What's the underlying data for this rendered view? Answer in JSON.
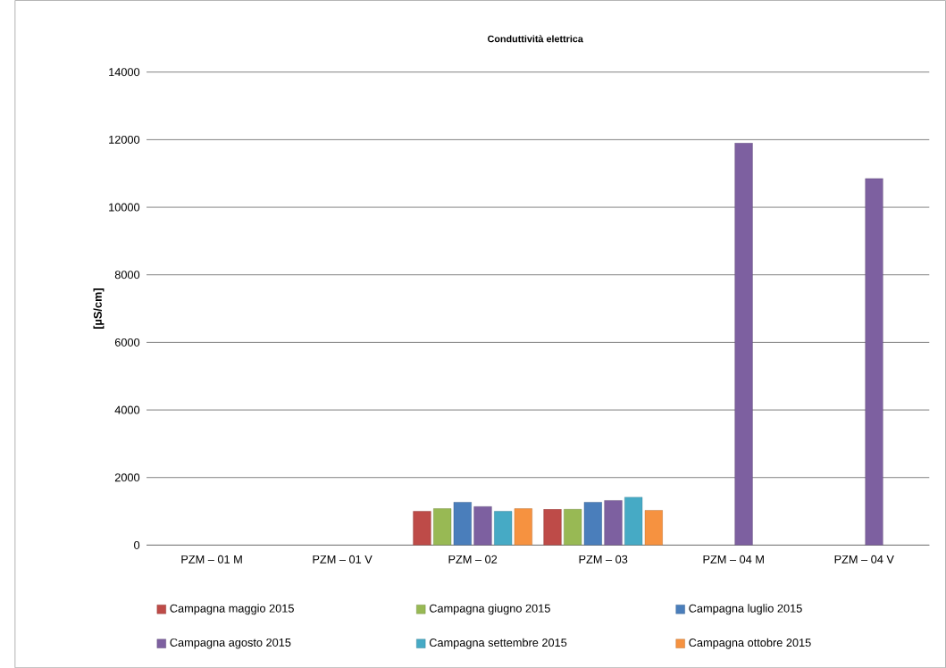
{
  "chart_data": {
    "type": "bar",
    "title": "Conduttività elettrica",
    "ylabel": "[µS/cm]",
    "categories": [
      "PZM – 01 M",
      "PZM – 01 V",
      "PZM  – 02",
      "PZM – 03",
      "PZM – 04 M",
      "PZM – 04 V"
    ],
    "series": [
      {
        "name": "Campagna maggio 2015",
        "color": "#be4b48",
        "values": [
          null,
          null,
          1000,
          1060,
          null,
          null
        ]
      },
      {
        "name": "Campagna giugno 2015",
        "color": "#98b954",
        "values": [
          null,
          null,
          1080,
          1060,
          null,
          null
        ]
      },
      {
        "name": "Campagna luglio 2015",
        "color": "#4a7ebb",
        "values": [
          null,
          null,
          1270,
          1270,
          null,
          null
        ]
      },
      {
        "name": "Campagna agosto 2015",
        "color": "#7d60a0",
        "values": [
          null,
          null,
          1140,
          1320,
          11900,
          10850
        ]
      },
      {
        "name": "Campagna settembre 2015",
        "color": "#46aac5",
        "values": [
          null,
          null,
          1000,
          1420,
          null,
          null
        ]
      },
      {
        "name": "Campagna ottobre 2015",
        "color": "#f69240",
        "values": [
          null,
          null,
          1080,
          1030,
          null,
          null
        ]
      }
    ],
    "ylim": [
      0,
      14000
    ],
    "yticks": [
      0,
      2000,
      4000,
      6000,
      8000,
      10000,
      12000,
      14000
    ],
    "grid": "y",
    "legend": "bottom"
  }
}
